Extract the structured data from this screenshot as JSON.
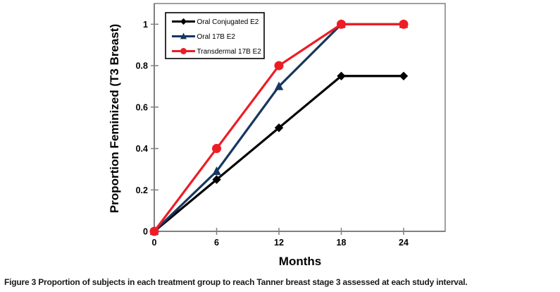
{
  "figure": {
    "caption_label": "Figure 3",
    "caption_text": "Proportion of subjects in each treatment group to reach Tanner breast stage 3 assessed at each study interval."
  },
  "chart_data": {
    "type": "line",
    "title": "",
    "xlabel": "Months",
    "ylabel": "Proportion Feminized (T3 Breast)",
    "x": [
      0,
      6,
      12,
      18,
      24
    ],
    "x_tick_labels": [
      "0",
      "6",
      "12",
      "18",
      "24"
    ],
    "y_ticks": [
      0,
      0.2,
      0.4,
      0.6,
      0.8,
      1
    ],
    "y_tick_labels": [
      "0",
      "0.2",
      "0.4",
      "0.6",
      "0.8",
      "1"
    ],
    "xlim": [
      0,
      28
    ],
    "ylim": [
      0,
      1.1
    ],
    "grid": false,
    "legend_position": "top-left-inside",
    "series": [
      {
        "name": "Oral Conjugated E2",
        "color": "#000000",
        "marker": "diamond",
        "values": [
          0,
          0.25,
          0.5,
          0.75,
          0.75
        ]
      },
      {
        "name": "Oral 17B E2",
        "color": "#17375E",
        "marker": "triangle",
        "values": [
          0,
          0.29,
          0.7,
          1,
          1
        ]
      },
      {
        "name": "Transdermal 17B E2",
        "color": "#EE1C25",
        "marker": "circle",
        "values": [
          0,
          0.4,
          0.8,
          1,
          1
        ]
      }
    ],
    "frame_color": "#808080",
    "legend_border_color": "#000000"
  }
}
